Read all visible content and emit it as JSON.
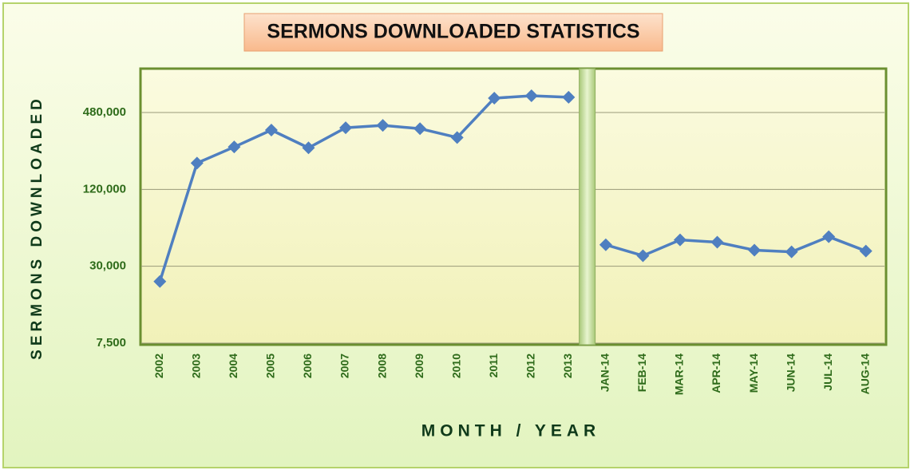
{
  "chart_data": {
    "type": "line",
    "title": "SERMONS DOWNLOADED STATISTICS",
    "x_label": "MONTH / YEAR",
    "y_label": "SERMONS DOWNLOADED",
    "categories": [
      "2002",
      "2003",
      "2004",
      "2005",
      "2006",
      "2007",
      "2008",
      "2009",
      "2010",
      "2011",
      "2012",
      "2013",
      "JAN-14",
      "FEB-14",
      "MAR-14",
      "APR-14",
      "MAY-14",
      "JUN-14",
      "JUL-14",
      "AUG-14"
    ],
    "series": [
      {
        "color": "#4f7fc0",
        "values": [
          22800,
          193000,
          258000,
          350000,
          254000,
          365000,
          381000,
          359000,
          306000,
          622000,
          650000,
          632000,
          44200,
          36300,
          48300,
          46300,
          40100,
          38900,
          51100,
          39500
        ]
      }
    ],
    "break_after_index": 11,
    "log_scale": true,
    "ylim": [
      7500,
      1030000
    ],
    "yticks": [
      {
        "value": 7500,
        "label": "7,500"
      },
      {
        "value": 30000,
        "label": "30,000"
      },
      {
        "value": 120000,
        "label": "120,000"
      },
      {
        "value": 480000,
        "label": "480,000"
      }
    ],
    "grid": true
  }
}
